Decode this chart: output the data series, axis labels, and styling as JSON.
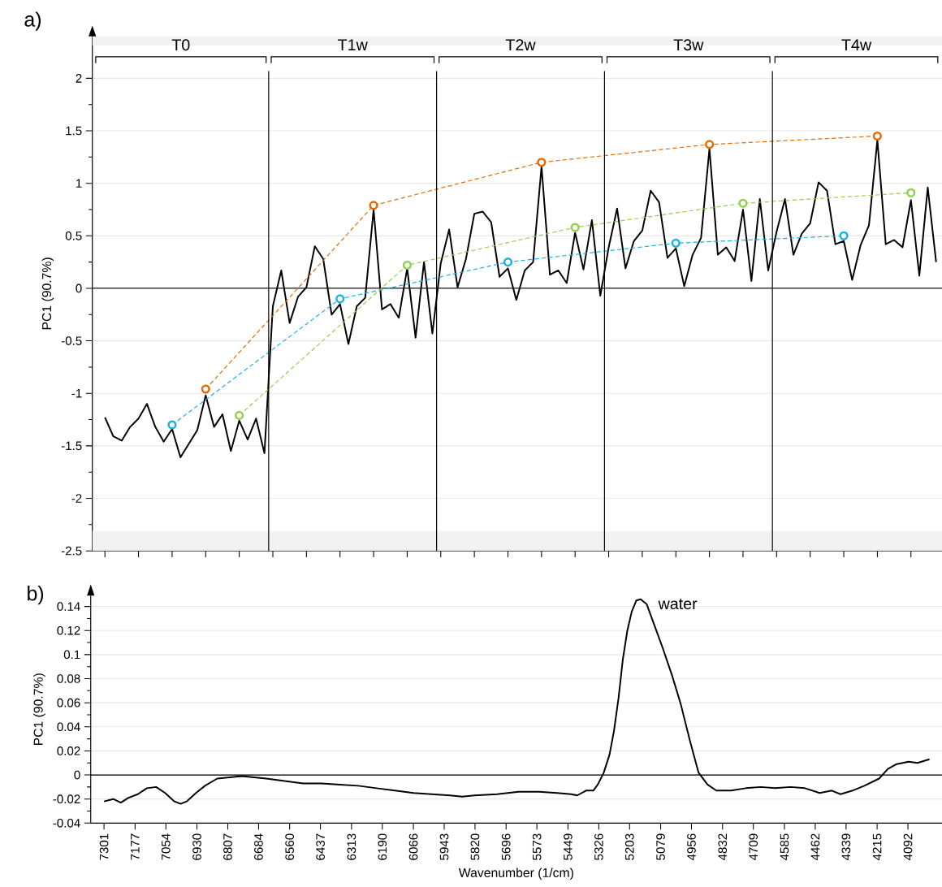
{
  "chart_data": [
    {
      "type": "line",
      "title": "a)",
      "ylabel": "PC1 (90.7%)",
      "categories": [
        null,
        null,
        null,
        null,
        null,
        null,
        null,
        null,
        null,
        null,
        null,
        null,
        null,
        null,
        null,
        null,
        null,
        null,
        null,
        null,
        null,
        null,
        null,
        null,
        null,
        null,
        null,
        null,
        null,
        null,
        null,
        null,
        null,
        null,
        null,
        null,
        null,
        null,
        null,
        null,
        null,
        null,
        null,
        null,
        null,
        null,
        null,
        null,
        null,
        null,
        null,
        null,
        null,
        null,
        null,
        null,
        null,
        null,
        null,
        null,
        null,
        null,
        null,
        null,
        null,
        null,
        null,
        null,
        null,
        null,
        null,
        null,
        null,
        null,
        null,
        null,
        null,
        null,
        null,
        null,
        null,
        null,
        null,
        null,
        null,
        null,
        null,
        null,
        null,
        null,
        null,
        null,
        null,
        null,
        null,
        null,
        null,
        null,
        null,
        null
      ],
      "ylim": [
        -2.5,
        2.4
      ],
      "yticks": [
        -2.5,
        -2,
        -1.5,
        -1,
        -0.5,
        0,
        0.5,
        1,
        1.5,
        2
      ],
      "grid": "y",
      "ref_lines": [
        {
          "axis": "y",
          "value": 0
        }
      ],
      "bands": [
        {
          "axis": "y",
          "from": 2.31,
          "to": 2.4,
          "color": "#f2f2f2"
        },
        {
          "axis": "y",
          "from": -2.5,
          "to": -2.31,
          "color": "#f2f2f2"
        }
      ],
      "annotations": [
        "T0",
        "T1w",
        "T2w",
        "T3w",
        "T4w"
      ],
      "series": [
        {
          "color": "#000000",
          "values": [
            -1.23,
            -1.41,
            -1.45,
            -1.32,
            -1.24,
            -1.1,
            -1.32,
            -1.46,
            -1.34,
            -1.61,
            -1.48,
            -1.35,
            -1.02,
            -1.32,
            -1.2,
            -1.55,
            -1.26,
            -1.44,
            -1.24,
            -1.57,
            -0.17,
            0.17,
            -0.33,
            -0.08,
            0.01,
            0.4,
            0.28,
            -0.25,
            -0.15,
            -0.53,
            -0.17,
            -0.09,
            0.75,
            -0.2,
            -0.15,
            -0.28,
            0.19,
            -0.47,
            0.25,
            -0.43,
            0.24,
            0.56,
            0.01,
            0.28,
            0.71,
            0.73,
            0.63,
            0.11,
            0.19,
            -0.11,
            0.17,
            0.25,
            1.16,
            0.13,
            0.17,
            0.05,
            0.53,
            0.18,
            0.65,
            -0.07,
            0.39,
            0.76,
            0.19,
            0.45,
            0.55,
            0.93,
            0.82,
            0.29,
            0.38,
            0.02,
            0.32,
            0.48,
            1.33,
            0.32,
            0.39,
            0.26,
            0.75,
            0.07,
            0.85,
            0.17,
            0.54,
            0.85,
            0.32,
            0.52,
            0.62,
            1.01,
            0.93,
            0.42,
            0.45,
            0.08,
            0.41,
            0.6,
            1.41,
            0.42,
            0.46,
            0.39,
            0.84,
            0.12,
            0.96,
            0.25
          ]
        },
        {
          "color": "#1ab0e8",
          "marker": "circle",
          "line_style": "dashed",
          "values": [
            null,
            null,
            null,
            null,
            null,
            null,
            null,
            null,
            -1.3,
            null,
            null,
            null,
            null,
            null,
            null,
            null,
            null,
            null,
            null,
            null,
            null,
            null,
            null,
            null,
            null,
            null,
            null,
            null,
            -0.1,
            null,
            null,
            null,
            null,
            null,
            null,
            null,
            null,
            null,
            null,
            null,
            null,
            null,
            null,
            null,
            null,
            null,
            null,
            null,
            0.25,
            null,
            null,
            null,
            null,
            null,
            null,
            null,
            null,
            null,
            null,
            null,
            null,
            null,
            null,
            null,
            null,
            null,
            null,
            null,
            0.43,
            null,
            null,
            null,
            null,
            null,
            null,
            null,
            null,
            null,
            null,
            null,
            null,
            null,
            null,
            null,
            null,
            null,
            null,
            null,
            0.5,
            null,
            null,
            null,
            null,
            null,
            null,
            null,
            null,
            null,
            null,
            null
          ]
        },
        {
          "color": "#e36c09",
          "marker": "circle",
          "line_style": "dashed",
          "values": [
            null,
            null,
            null,
            null,
            null,
            null,
            null,
            null,
            null,
            null,
            null,
            null,
            -0.96,
            null,
            null,
            null,
            null,
            null,
            null,
            null,
            null,
            null,
            null,
            null,
            null,
            null,
            null,
            null,
            null,
            null,
            null,
            null,
            0.79,
            null,
            null,
            null,
            null,
            null,
            null,
            null,
            null,
            null,
            null,
            null,
            null,
            null,
            null,
            null,
            null,
            null,
            null,
            null,
            1.2,
            null,
            null,
            null,
            null,
            null,
            null,
            null,
            null,
            null,
            null,
            null,
            null,
            null,
            null,
            null,
            null,
            null,
            null,
            null,
            1.37,
            null,
            null,
            null,
            null,
            null,
            null,
            null,
            null,
            null,
            null,
            null,
            null,
            null,
            null,
            null,
            null,
            null,
            null,
            null,
            1.45,
            null,
            null,
            null,
            null,
            null,
            null,
            null
          ]
        },
        {
          "color": "#92d050",
          "marker": "circle",
          "line_style": "dashed",
          "values": [
            null,
            null,
            null,
            null,
            null,
            null,
            null,
            null,
            null,
            null,
            null,
            null,
            null,
            null,
            null,
            null,
            -1.21,
            null,
            null,
            null,
            null,
            null,
            null,
            null,
            null,
            null,
            null,
            null,
            null,
            null,
            null,
            null,
            null,
            null,
            null,
            null,
            0.22,
            null,
            null,
            null,
            null,
            null,
            null,
            null,
            null,
            null,
            null,
            null,
            null,
            null,
            null,
            null,
            null,
            null,
            null,
            null,
            0.58,
            null,
            null,
            null,
            null,
            null,
            null,
            null,
            null,
            null,
            null,
            null,
            null,
            null,
            null,
            null,
            null,
            null,
            null,
            null,
            0.81,
            null,
            null,
            null,
            null,
            null,
            null,
            null,
            null,
            null,
            null,
            null,
            null,
            null,
            null,
            null,
            null,
            null,
            null,
            null,
            0.91,
            null,
            null,
            null
          ]
        }
      ]
    },
    {
      "type": "line",
      "title": "b)",
      "xlabel": "Wavenumber (1/cm)",
      "ylabel": "PC1 (90.7%)",
      "xlim": [
        7354,
        3956
      ],
      "ylim": [
        -0.04,
        0.149
      ],
      "xticks": [
        7301,
        7177,
        7054,
        6930,
        6807,
        6684,
        6560,
        6437,
        6313,
        6190,
        6066,
        5943,
        5820,
        5696,
        5573,
        5449,
        5326,
        5203,
        5079,
        4956,
        4832,
        4709,
        4585,
        4462,
        4339,
        4215,
        4092
      ],
      "yticks": [
        -0.04,
        -0.02,
        0,
        0.02,
        0.04,
        0.06,
        0.08,
        0.1,
        0.12,
        0.14
      ],
      "grid": "y",
      "ref_lines": [
        {
          "axis": "y",
          "value": 0
        }
      ],
      "annotations": [
        {
          "text": "water",
          "x": 5159,
          "y": 0.146
        }
      ],
      "series": [
        {
          "color": "#000000",
          "x": [
            7301,
            7264,
            7234,
            7203,
            7166,
            7130,
            7093,
            7057,
            7020,
            6995,
            6971,
            6934,
            6898,
            6849,
            6800,
            6751,
            6702,
            6653,
            6580,
            6506,
            6433,
            6360,
            6286,
            6213,
            6140,
            6066,
            5993,
            5920,
            5871,
            5822,
            5732,
            5646,
            5564,
            5493,
            5436,
            5412,
            5377,
            5348,
            5330,
            5306,
            5283,
            5265,
            5247,
            5230,
            5212,
            5194,
            5176,
            5159,
            5135,
            5105,
            5070,
            5034,
            4999,
            4963,
            4928,
            4892,
            4857,
            4798,
            4739,
            4680,
            4621,
            4561,
            4503,
            4444,
            4396,
            4361,
            4313,
            4266,
            4207,
            4172,
            4137,
            4089,
            4054,
            4006
          ],
          "values": [
            -0.022,
            -0.02,
            -0.023,
            -0.019,
            -0.016,
            -0.011,
            -0.01,
            -0.015,
            -0.022,
            -0.024,
            -0.022,
            -0.015,
            -0.009,
            -0.003,
            -0.002,
            -0.001,
            -0.002,
            -0.003,
            -0.005,
            -0.007,
            -0.007,
            -0.008,
            -0.009,
            -0.011,
            -0.013,
            -0.015,
            -0.016,
            -0.017,
            -0.018,
            -0.017,
            -0.016,
            -0.014,
            -0.014,
            -0.015,
            -0.016,
            -0.017,
            -0.013,
            -0.013,
            -0.008,
            0.002,
            0.017,
            0.037,
            0.064,
            0.096,
            0.12,
            0.136,
            0.145,
            0.146,
            0.142,
            0.125,
            0.105,
            0.083,
            0.059,
            0.029,
            0.002,
            -0.008,
            -0.013,
            -0.013,
            -0.011,
            -0.01,
            -0.011,
            -0.01,
            -0.011,
            -0.015,
            -0.013,
            -0.016,
            -0.013,
            -0.009,
            -0.003,
            0.005,
            0.009,
            0.011,
            0.01,
            0.013
          ]
        }
      ]
    }
  ]
}
